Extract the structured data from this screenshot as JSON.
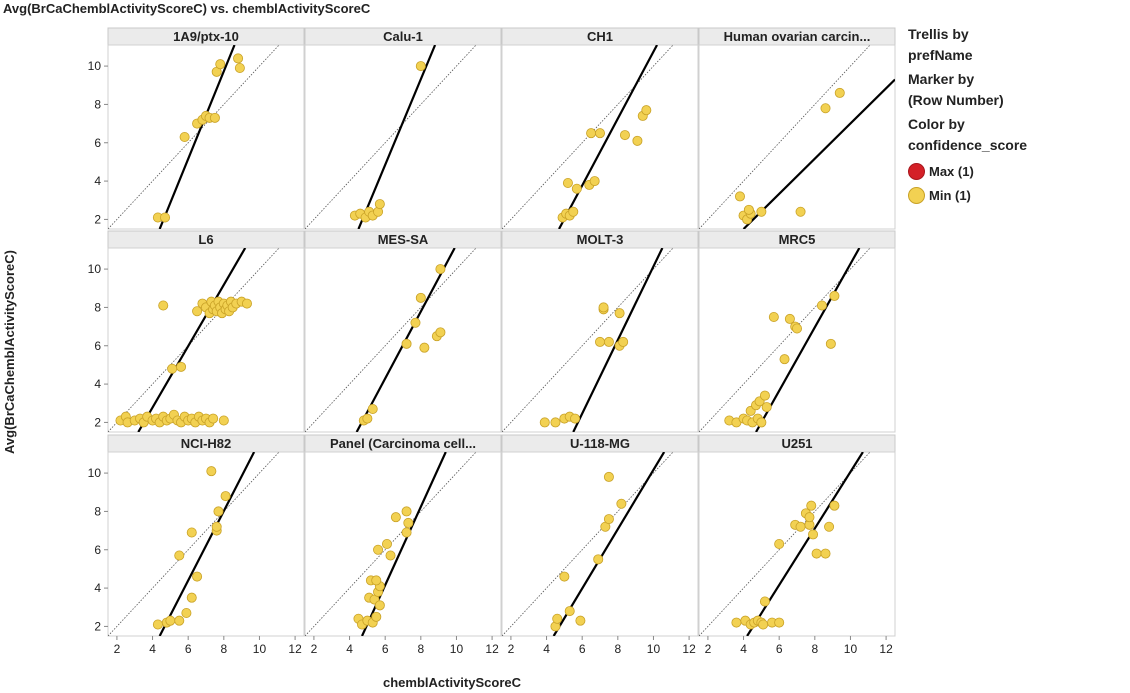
{
  "chart_data": {
    "type": "scatter",
    "title": "Avg(BrCaChemblActivityScoreC) vs. chemblActivityScoreC",
    "xlabel": "chemblActivityScoreC",
    "ylabel": "Avg(BrCaChemblActivityScoreC)",
    "xlim": [
      1.5,
      12.5
    ],
    "ylim": [
      1.5,
      11.1
    ],
    "xticks": [
      "2",
      "4",
      "6",
      "8",
      "10",
      "12"
    ],
    "yticks": [
      "2",
      "4",
      "6",
      "8",
      "10"
    ],
    "grid": false,
    "reference_line": "y = x (thin dotted) plus per-panel fitted line (thick solid)",
    "marker_color": "#F2D152",
    "marker_edge": "#C9A227",
    "panels": [
      {
        "name": "1A9/ptx-10",
        "fit": [
          [
            4.4,
            1.5
          ],
          [
            8.6,
            11.1
          ]
        ],
        "points": [
          [
            4.3,
            2.1
          ],
          [
            4.7,
            2.1
          ],
          [
            5.8,
            6.3
          ],
          [
            6.5,
            7.0
          ],
          [
            6.8,
            7.2
          ],
          [
            7.0,
            7.4
          ],
          [
            7.2,
            7.3
          ],
          [
            7.5,
            7.3
          ],
          [
            7.6,
            9.7
          ],
          [
            7.8,
            10.1
          ],
          [
            8.8,
            10.4
          ],
          [
            8.9,
            9.9
          ]
        ]
      },
      {
        "name": "Calu-1",
        "fit": [
          [
            4.5,
            1.5
          ],
          [
            8.8,
            11.1
          ]
        ],
        "points": [
          [
            4.3,
            2.2
          ],
          [
            4.6,
            2.3
          ],
          [
            4.9,
            2.1
          ],
          [
            5.1,
            2.4
          ],
          [
            5.3,
            2.2
          ],
          [
            5.6,
            2.4
          ],
          [
            5.7,
            2.8
          ],
          [
            8.0,
            10.0
          ]
        ]
      },
      {
        "name": "CH1",
        "fit": [
          [
            4.7,
            1.5
          ],
          [
            10.2,
            11.1
          ]
        ],
        "points": [
          [
            4.9,
            2.1
          ],
          [
            5.1,
            2.3
          ],
          [
            5.3,
            2.2
          ],
          [
            5.5,
            2.4
          ],
          [
            5.2,
            3.9
          ],
          [
            5.7,
            3.6
          ],
          [
            6.4,
            3.8
          ],
          [
            6.7,
            4.0
          ],
          [
            6.5,
            6.5
          ],
          [
            7.0,
            6.5
          ],
          [
            8.4,
            6.4
          ],
          [
            9.1,
            6.1
          ],
          [
            9.4,
            7.4
          ],
          [
            9.6,
            7.7
          ]
        ]
      },
      {
        "name": "Human ovarian carcin...",
        "fit": [
          [
            4.0,
            1.5
          ],
          [
            12.5,
            9.3
          ]
        ],
        "points": [
          [
            3.8,
            3.2
          ],
          [
            4.0,
            2.2
          ],
          [
            4.2,
            2.0
          ],
          [
            4.4,
            2.3
          ],
          [
            5.0,
            2.4
          ],
          [
            4.3,
            2.5
          ],
          [
            7.2,
            2.4
          ],
          [
            8.6,
            7.8
          ],
          [
            9.4,
            8.6
          ]
        ]
      },
      {
        "name": "L6",
        "fit": [
          [
            3.2,
            1.5
          ],
          [
            9.2,
            11.1
          ]
        ],
        "points": [
          [
            2.2,
            2.1
          ],
          [
            2.5,
            2.3
          ],
          [
            2.6,
            2.0
          ],
          [
            3.0,
            2.1
          ],
          [
            3.3,
            2.2
          ],
          [
            3.5,
            2.0
          ],
          [
            3.7,
            2.3
          ],
          [
            4.0,
            2.1
          ],
          [
            4.2,
            2.2
          ],
          [
            4.4,
            2.0
          ],
          [
            4.6,
            2.3
          ],
          [
            4.8,
            2.1
          ],
          [
            5.0,
            2.2
          ],
          [
            5.2,
            2.4
          ],
          [
            5.4,
            2.1
          ],
          [
            5.6,
            2.0
          ],
          [
            5.8,
            2.3
          ],
          [
            6.0,
            2.1
          ],
          [
            6.2,
            2.2
          ],
          [
            6.4,
            2.0
          ],
          [
            6.6,
            2.3
          ],
          [
            6.8,
            2.1
          ],
          [
            7.0,
            2.2
          ],
          [
            7.2,
            2.0
          ],
          [
            7.4,
            2.2
          ],
          [
            8.0,
            2.1
          ],
          [
            4.6,
            8.1
          ],
          [
            5.1,
            4.8
          ],
          [
            5.6,
            4.9
          ],
          [
            6.5,
            7.8
          ],
          [
            6.8,
            8.2
          ],
          [
            7.0,
            8.0
          ],
          [
            7.2,
            7.7
          ],
          [
            7.3,
            8.3
          ],
          [
            7.4,
            7.9
          ],
          [
            7.5,
            8.1
          ],
          [
            7.6,
            7.8
          ],
          [
            7.7,
            8.3
          ],
          [
            7.8,
            8.0
          ],
          [
            7.9,
            7.7
          ],
          [
            8.0,
            8.2
          ],
          [
            8.1,
            7.9
          ],
          [
            8.2,
            8.1
          ],
          [
            8.3,
            7.8
          ],
          [
            8.4,
            8.3
          ],
          [
            8.5,
            8.0
          ],
          [
            8.7,
            8.2
          ],
          [
            9.0,
            8.3
          ],
          [
            9.3,
            8.2
          ]
        ]
      },
      {
        "name": "MES-SA",
        "fit": [
          [
            4.4,
            1.5
          ],
          [
            9.9,
            11.1
          ]
        ],
        "points": [
          [
            4.8,
            2.1
          ],
          [
            5.0,
            2.2
          ],
          [
            5.3,
            2.7
          ],
          [
            7.2,
            6.1
          ],
          [
            7.7,
            7.2
          ],
          [
            8.0,
            8.5
          ],
          [
            8.2,
            5.9
          ],
          [
            8.9,
            6.5
          ],
          [
            9.1,
            6.7
          ],
          [
            9.1,
            10.0
          ]
        ]
      },
      {
        "name": "MOLT-3",
        "fit": [
          [
            5.5,
            1.5
          ],
          [
            10.5,
            11.1
          ]
        ],
        "points": [
          [
            3.9,
            2.0
          ],
          [
            4.5,
            2.0
          ],
          [
            5.0,
            2.2
          ],
          [
            5.3,
            2.3
          ],
          [
            5.6,
            2.2
          ],
          [
            7.0,
            6.2
          ],
          [
            7.5,
            6.2
          ],
          [
            8.1,
            6.0
          ],
          [
            8.3,
            6.2
          ],
          [
            8.1,
            7.7
          ],
          [
            7.2,
            7.9
          ],
          [
            7.2,
            8.0
          ]
        ]
      },
      {
        "name": "MRC5",
        "fit": [
          [
            4.7,
            1.5
          ],
          [
            10.5,
            11.1
          ]
        ],
        "points": [
          [
            3.2,
            2.1
          ],
          [
            3.6,
            2.0
          ],
          [
            4.0,
            2.2
          ],
          [
            4.2,
            2.1
          ],
          [
            4.5,
            2.0
          ],
          [
            4.8,
            2.2
          ],
          [
            5.0,
            2.0
          ],
          [
            4.4,
            2.6
          ],
          [
            4.7,
            2.9
          ],
          [
            4.9,
            3.1
          ],
          [
            5.2,
            3.4
          ],
          [
            5.3,
            2.8
          ],
          [
            5.7,
            7.5
          ],
          [
            6.3,
            5.3
          ],
          [
            6.6,
            7.4
          ],
          [
            6.9,
            7.0
          ],
          [
            7.0,
            6.9
          ],
          [
            8.4,
            8.1
          ],
          [
            8.9,
            6.1
          ],
          [
            9.1,
            8.6
          ]
        ]
      },
      {
        "name": "NCI-H82",
        "fit": [
          [
            4.4,
            1.5
          ],
          [
            9.7,
            11.1
          ]
        ],
        "points": [
          [
            4.3,
            2.1
          ],
          [
            4.8,
            2.2
          ],
          [
            5.0,
            2.3
          ],
          [
            5.5,
            2.3
          ],
          [
            5.5,
            5.7
          ],
          [
            5.9,
            2.7
          ],
          [
            6.2,
            3.5
          ],
          [
            6.2,
            6.9
          ],
          [
            6.5,
            4.6
          ],
          [
            7.3,
            10.1
          ],
          [
            7.6,
            7.0
          ],
          [
            7.6,
            7.2
          ],
          [
            7.7,
            8.0
          ],
          [
            8.1,
            8.8
          ]
        ]
      },
      {
        "name": "Panel (Carcinoma cell...",
        "fit": [
          [
            4.7,
            1.5
          ],
          [
            9.4,
            11.1
          ]
        ],
        "points": [
          [
            4.5,
            2.4
          ],
          [
            4.7,
            2.1
          ],
          [
            5.0,
            2.3
          ],
          [
            5.3,
            2.2
          ],
          [
            5.5,
            2.5
          ],
          [
            5.1,
            3.5
          ],
          [
            5.4,
            3.4
          ],
          [
            5.6,
            3.8
          ],
          [
            5.7,
            3.1
          ],
          [
            5.7,
            4.1
          ],
          [
            5.2,
            4.4
          ],
          [
            5.5,
            4.4
          ],
          [
            5.6,
            6.0
          ],
          [
            6.1,
            6.3
          ],
          [
            6.3,
            5.7
          ],
          [
            6.6,
            7.7
          ],
          [
            7.2,
            8.0
          ],
          [
            7.3,
            7.4
          ],
          [
            7.2,
            6.9
          ]
        ]
      },
      {
        "name": "U-118-MG",
        "fit": [
          [
            4.4,
            1.5
          ],
          [
            10.6,
            11.1
          ]
        ],
        "points": [
          [
            4.5,
            2.0
          ],
          [
            4.6,
            2.4
          ],
          [
            5.0,
            4.6
          ],
          [
            5.3,
            2.8
          ],
          [
            5.9,
            2.3
          ],
          [
            6.9,
            5.5
          ],
          [
            7.3,
            7.2
          ],
          [
            7.5,
            7.6
          ],
          [
            7.5,
            9.8
          ],
          [
            8.2,
            8.4
          ]
        ]
      },
      {
        "name": "U251",
        "fit": [
          [
            4.2,
            1.5
          ],
          [
            10.7,
            11.1
          ]
        ],
        "points": [
          [
            3.6,
            2.2
          ],
          [
            4.1,
            2.3
          ],
          [
            4.4,
            2.1
          ],
          [
            4.6,
            2.2
          ],
          [
            4.8,
            2.3
          ],
          [
            5.0,
            2.2
          ],
          [
            5.1,
            2.1
          ],
          [
            5.6,
            2.2
          ],
          [
            6.0,
            2.2
          ],
          [
            5.2,
            3.3
          ],
          [
            6.0,
            6.3
          ],
          [
            6.9,
            7.3
          ],
          [
            7.2,
            7.2
          ],
          [
            7.5,
            7.9
          ],
          [
            7.7,
            7.3
          ],
          [
            7.8,
            8.3
          ],
          [
            7.7,
            7.7
          ],
          [
            7.9,
            6.8
          ],
          [
            8.1,
            5.8
          ],
          [
            8.6,
            5.8
          ],
          [
            8.8,
            7.2
          ],
          [
            9.1,
            8.3
          ]
        ]
      }
    ]
  },
  "legend": {
    "trellis_title": "Trellis by",
    "trellis_field": "prefName",
    "marker_title": "Marker by",
    "marker_field": "(Row Number)",
    "color_title": "Color by",
    "color_field": "confidence_score",
    "items": [
      {
        "label": "Max (1)",
        "color": "#D42027"
      },
      {
        "label": "Min (1)",
        "color": "#F2D152"
      }
    ]
  }
}
